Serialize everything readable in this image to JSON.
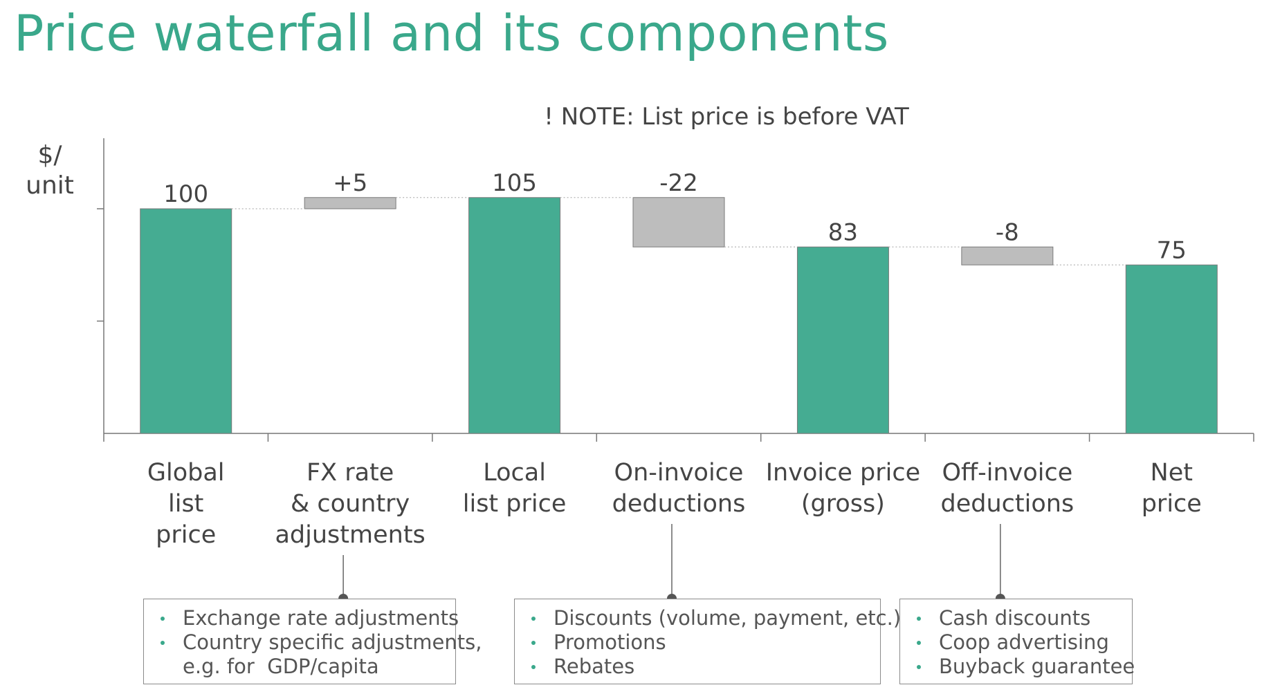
{
  "title": "Price waterfall and its components",
  "colors": {
    "title": "#3aa88b",
    "total_bar": "#45ac92",
    "change_bar": "#bdbdbd",
    "bullet": "#3aa88b",
    "text": "#444444"
  },
  "chart_data": {
    "type": "bar",
    "subtype": "waterfall",
    "note": "! NOTE: List price is before VAT",
    "ylabel": "$/\nunit",
    "categories": [
      "Global\nlist\nprice",
      "FX rate\n& country\nadjustments",
      "Local\nlist price",
      "On-invoice\ndeductions",
      "Invoice price\n(gross)",
      "Off-invoice\ndeductions",
      "Net\nprice"
    ],
    "steps": [
      {
        "kind": "total",
        "value": 100,
        "label": "100"
      },
      {
        "kind": "change",
        "value": 5,
        "label": "+5"
      },
      {
        "kind": "total",
        "value": 105,
        "label": "105"
      },
      {
        "kind": "change",
        "value": -22,
        "label": "-22"
      },
      {
        "kind": "total",
        "value": 83,
        "label": "83"
      },
      {
        "kind": "change",
        "value": -8,
        "label": "-8"
      },
      {
        "kind": "total",
        "value": 75,
        "label": "75"
      }
    ],
    "ylim": [
      0,
      130
    ]
  },
  "callouts": [
    {
      "category": 1,
      "items": [
        "Exchange rate adjustments",
        "Country specific adjustments,\ne.g. for  GDP/capita"
      ]
    },
    {
      "category": 3,
      "items": [
        "Discounts (volume, payment, etc.)",
        "Promotions",
        "Rebates"
      ]
    },
    {
      "category": 5,
      "items": [
        "Cash discounts",
        "Coop advertising",
        "Buyback guarantee"
      ]
    }
  ]
}
